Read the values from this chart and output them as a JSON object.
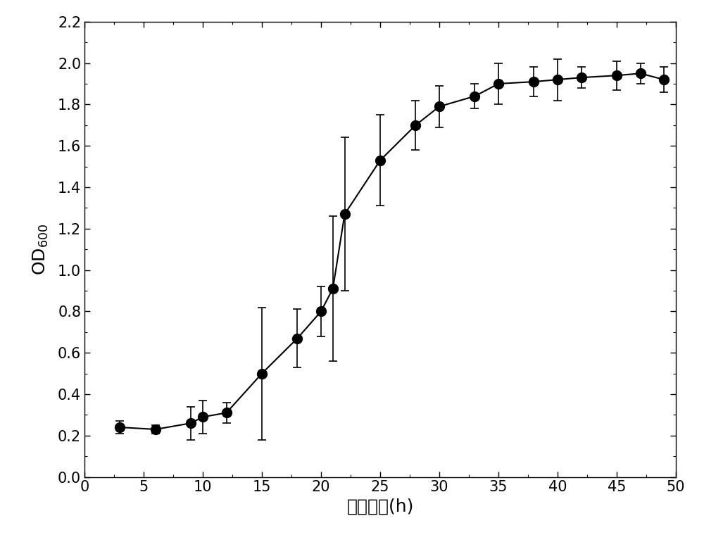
{
  "x": [
    3,
    6,
    9,
    10,
    12,
    15,
    18,
    20,
    21,
    22,
    25,
    28,
    30,
    33,
    35,
    38,
    40,
    42,
    45,
    47,
    49
  ],
  "y": [
    0.24,
    0.23,
    0.26,
    0.29,
    0.31,
    0.5,
    0.67,
    0.8,
    0.91,
    1.27,
    1.53,
    1.7,
    1.79,
    1.84,
    1.9,
    1.91,
    1.92,
    1.93,
    1.94,
    1.95,
    1.92
  ],
  "yerr": [
    0.03,
    0.02,
    0.08,
    0.08,
    0.05,
    0.32,
    0.14,
    0.12,
    0.35,
    0.37,
    0.22,
    0.12,
    0.1,
    0.06,
    0.1,
    0.07,
    0.1,
    0.05,
    0.07,
    0.05,
    0.06
  ],
  "xlim": [
    0,
    50
  ],
  "ylim": [
    0.0,
    2.2
  ],
  "xticks": [
    0,
    5,
    10,
    15,
    20,
    25,
    30,
    35,
    40,
    45,
    50
  ],
  "yticks": [
    0.0,
    0.2,
    0.4,
    0.6,
    0.8,
    1.0,
    1.2,
    1.4,
    1.6,
    1.8,
    2.0,
    2.2
  ],
  "xlabel": "反应时间(h)",
  "ylabel_main": "OD",
  "ylabel_sub": "600",
  "line_color": "#000000",
  "marker_color": "#000000",
  "background_color": "#ffffff",
  "label_fontsize": 18,
  "tick_fontsize": 15
}
